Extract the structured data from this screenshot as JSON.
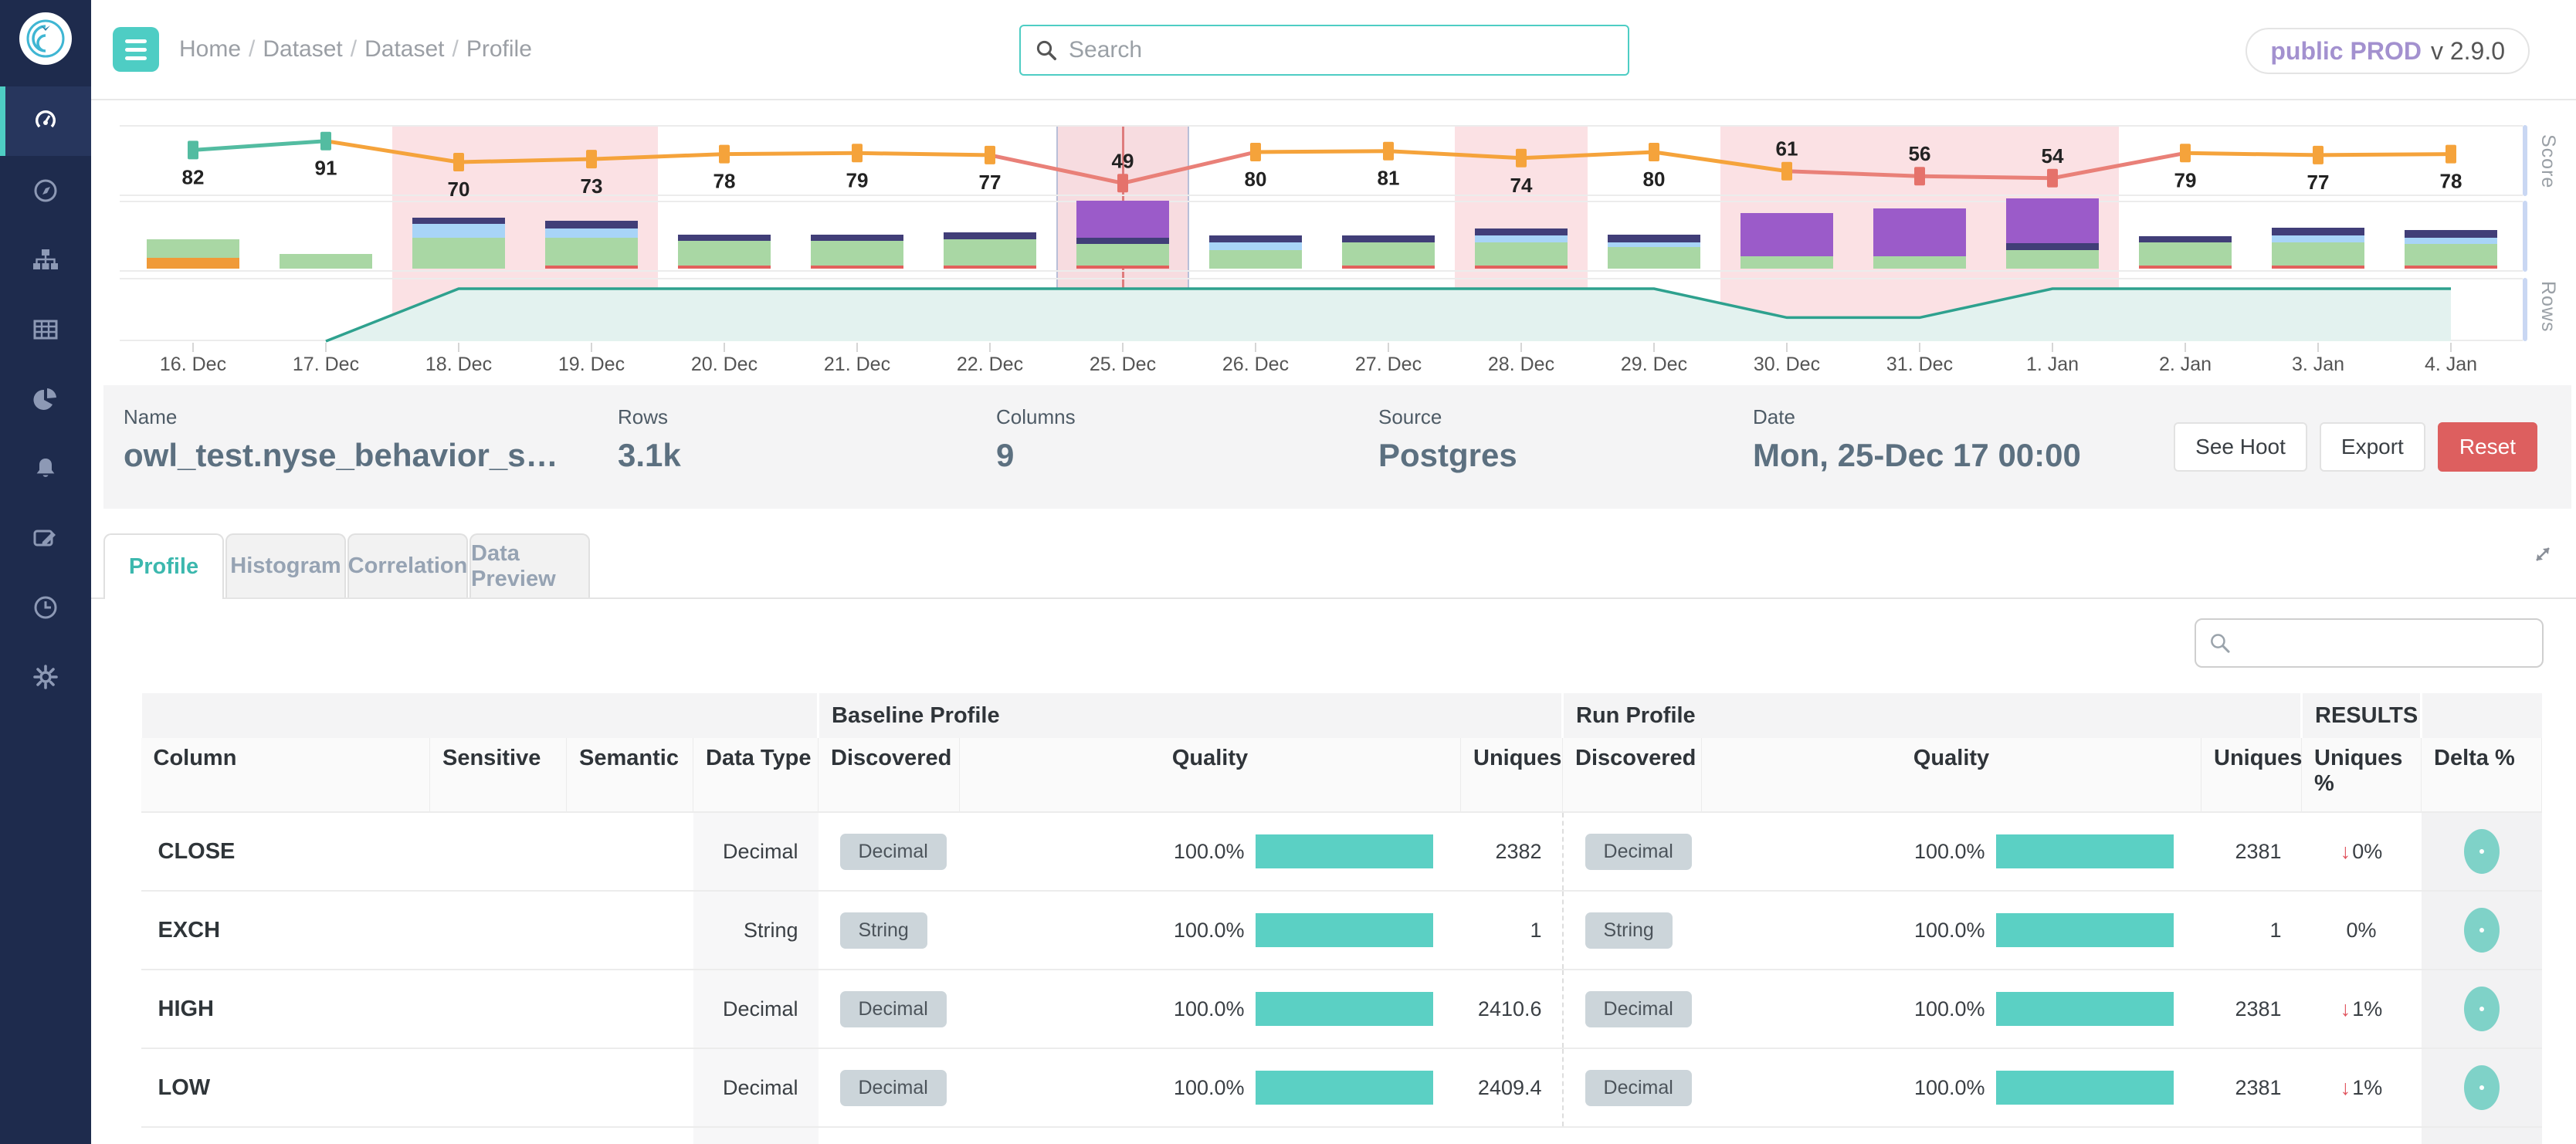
{
  "app": {
    "breadcrumb": [
      "Home",
      "Dataset",
      "Dataset",
      "Profile"
    ],
    "search_placeholder": "Search",
    "env_badge": {
      "bold": "public PROD",
      "version": "v 2.9.0"
    }
  },
  "sidebar": {
    "items": [
      {
        "name": "dashboard",
        "icon": "gauge-icon",
        "active": true
      },
      {
        "name": "explore",
        "icon": "compass-icon",
        "active": false
      },
      {
        "name": "catalog",
        "icon": "sitemap-icon",
        "active": false
      },
      {
        "name": "datasets",
        "icon": "table-icon",
        "active": false
      },
      {
        "name": "reports",
        "icon": "pie-chart-icon",
        "active": false
      },
      {
        "name": "alerts",
        "icon": "bell-icon",
        "active": false
      },
      {
        "name": "rules",
        "icon": "edit-icon",
        "active": false
      },
      {
        "name": "jobs",
        "icon": "clock-icon",
        "active": false
      },
      {
        "name": "admin",
        "icon": "gear-icon",
        "active": false
      }
    ]
  },
  "chart_data": [
    {
      "type": "line",
      "title": "Score",
      "x": [
        "16. Dec",
        "17. Dec",
        "18. Dec",
        "19. Dec",
        "20. Dec",
        "21. Dec",
        "22. Dec",
        "25. Dec",
        "26. Dec",
        "27. Dec",
        "28. Dec",
        "29. Dec",
        "30. Dec",
        "31. Dec",
        "1. Jan",
        "2. Jan",
        "3. Jan",
        "4. Jan"
      ],
      "values": [
        82,
        91,
        70,
        73,
        78,
        79,
        77,
        49,
        80,
        81,
        74,
        80,
        61,
        56,
        54,
        79,
        77,
        78
      ],
      "ylim": [
        40,
        100
      ],
      "marker_colors": [
        "teal",
        "teal",
        "orange",
        "orange",
        "orange",
        "orange",
        "orange",
        "red",
        "orange",
        "orange",
        "orange",
        "orange",
        "orange",
        "red",
        "red",
        "orange",
        "orange",
        "orange"
      ],
      "label_above_indices": [
        7,
        12,
        13,
        14
      ],
      "anomaly_bands": [
        [
          2,
          3
        ],
        [
          7,
          7
        ],
        [
          10,
          10
        ],
        [
          12,
          14
        ]
      ],
      "selected_index": 7,
      "palette": {
        "teal": "#53bca1",
        "orange": "#f5a33b",
        "red": "#e5726b",
        "red_line": "#e98078"
      }
    },
    {
      "type": "bar",
      "stacked": true,
      "categories": [
        "16. Dec",
        "17. Dec",
        "18. Dec",
        "19. Dec",
        "20. Dec",
        "21. Dec",
        "22. Dec",
        "25. Dec",
        "26. Dec",
        "27. Dec",
        "28. Dec",
        "29. Dec",
        "30. Dec",
        "31. Dec",
        "1. Jan",
        "2. Jan",
        "3. Jan",
        "4. Jan"
      ],
      "segment_colors": {
        "o": "#f09a38",
        "g": "#a9d7a4",
        "b": "#a8d4f7",
        "n": "#413e78",
        "p": "#9b5bc9",
        "r": "#e2605c"
      },
      "bars": [
        [
          [
            "o",
            14
          ],
          [
            "g",
            24
          ]
        ],
        [
          [
            "g",
            19
          ]
        ],
        [
          [
            "g",
            40
          ],
          [
            "b",
            18
          ],
          [
            "n",
            8
          ]
        ],
        [
          [
            "r",
            4
          ],
          [
            "g",
            36
          ],
          [
            "b",
            12
          ],
          [
            "n",
            10
          ]
        ],
        [
          [
            "r",
            4
          ],
          [
            "g",
            32
          ],
          [
            "n",
            8
          ]
        ],
        [
          [
            "r",
            4
          ],
          [
            "g",
            32
          ],
          [
            "n",
            8
          ]
        ],
        [
          [
            "r",
            4
          ],
          [
            "g",
            34
          ],
          [
            "n",
            9
          ]
        ],
        [
          [
            "r",
            4
          ],
          [
            "g",
            28
          ],
          [
            "n",
            8
          ],
          [
            "p",
            48
          ]
        ],
        [
          [
            "g",
            24
          ],
          [
            "b",
            10
          ],
          [
            "n",
            9
          ]
        ],
        [
          [
            "r",
            4
          ],
          [
            "g",
            30
          ],
          [
            "n",
            9
          ]
        ],
        [
          [
            "r",
            4
          ],
          [
            "g",
            30
          ],
          [
            "b",
            9
          ],
          [
            "n",
            9
          ]
        ],
        [
          [
            "g",
            28
          ],
          [
            "b",
            6
          ],
          [
            "n",
            10
          ]
        ],
        [
          [
            "g",
            16
          ],
          [
            "p",
            56
          ]
        ],
        [
          [
            "g",
            16
          ],
          [
            "p",
            62
          ]
        ],
        [
          [
            "g",
            24
          ],
          [
            "n",
            9
          ],
          [
            "p",
            58
          ]
        ],
        [
          [
            "r",
            4
          ],
          [
            "g",
            30
          ],
          [
            "n",
            8
          ]
        ],
        [
          [
            "r",
            4
          ],
          [
            "g",
            30
          ],
          [
            "b",
            9
          ],
          [
            "n",
            10
          ]
        ],
        [
          [
            "r",
            4
          ],
          [
            "g",
            28
          ],
          [
            "b",
            8
          ],
          [
            "n",
            10
          ]
        ]
      ]
    },
    {
      "type": "area",
      "title": "Rows",
      "x_index": [
        1,
        2,
        11,
        12,
        13,
        14,
        17
      ],
      "values_norm": [
        0,
        1,
        1,
        0.45,
        0.45,
        1,
        1
      ],
      "line_color": "#2ea18e",
      "fill_color": "#e3f2ef"
    }
  ],
  "info_bar": {
    "fields": [
      {
        "label": "Name",
        "value": "owl_test.nyse_behavior_s…"
      },
      {
        "label": "Rows",
        "value": "3.1k"
      },
      {
        "label": "Columns",
        "value": "9"
      },
      {
        "label": "Source",
        "value": "Postgres"
      },
      {
        "label": "Date",
        "value": "Mon, 25-Dec 17 00:00"
      }
    ],
    "buttons": [
      {
        "label": "See Hoot",
        "style": "light",
        "name": "see-hoot-button"
      },
      {
        "label": "Export",
        "style": "light",
        "name": "export-button"
      },
      {
        "label": "Reset",
        "style": "danger",
        "name": "reset-button"
      }
    ]
  },
  "tabs": {
    "items": [
      "Profile",
      "Histogram",
      "Correlation",
      "Data Preview"
    ],
    "active": "Profile"
  },
  "table": {
    "group_headers": [
      {
        "label": "",
        "span": 4
      },
      {
        "label": "Baseline Profile",
        "span": 3
      },
      {
        "label": "Run Profile",
        "span": 3
      },
      {
        "label": "RESULTS",
        "span": 1
      },
      {
        "label": "",
        "span": 1
      }
    ],
    "columns": [
      "Column",
      "Sensitive",
      "Semantic",
      "Data Type",
      "Discovered",
      "Quality",
      "Uniques",
      "Discovered",
      "Quality",
      "Uniques",
      "Uniques %",
      "Delta %"
    ],
    "rows": [
      {
        "column": "CLOSE",
        "sensitive": "",
        "semantic": "",
        "data_type": "Decimal",
        "baseline": {
          "discovered": "Decimal",
          "quality": "100.0%",
          "uniques": "2382"
        },
        "run": {
          "discovered": "Decimal",
          "quality": "100.0%",
          "uniques": "2381"
        },
        "uniques_pct": {
          "trend": "down",
          "value": "0%"
        }
      },
      {
        "column": "EXCH",
        "sensitive": "",
        "semantic": "",
        "data_type": "String",
        "baseline": {
          "discovered": "String",
          "quality": "100.0%",
          "uniques": "1"
        },
        "run": {
          "discovered": "String",
          "quality": "100.0%",
          "uniques": "1"
        },
        "uniques_pct": {
          "trend": "none",
          "value": "0%"
        }
      },
      {
        "column": "HIGH",
        "sensitive": "",
        "semantic": "",
        "data_type": "Decimal",
        "baseline": {
          "discovered": "Decimal",
          "quality": "100.0%",
          "uniques": "2410.6"
        },
        "run": {
          "discovered": "Decimal",
          "quality": "100.0%",
          "uniques": "2381"
        },
        "uniques_pct": {
          "trend": "down",
          "value": "1%"
        }
      },
      {
        "column": "LOW",
        "sensitive": "",
        "semantic": "",
        "data_type": "Decimal",
        "baseline": {
          "discovered": "Decimal",
          "quality": "100.0%",
          "uniques": "2409.4"
        },
        "run": {
          "discovered": "Decimal",
          "quality": "100.0%",
          "uniques": "2381"
        },
        "uniques_pct": {
          "trend": "down",
          "value": "1%"
        }
      }
    ]
  },
  "colors": {
    "accent_teal": "#4ecdc4",
    "quality_bar": "#5bd0c4",
    "pink_band": "#f9d6da",
    "danger_red": "#dd5f5f",
    "sidebar_navy": "#1e2b4d"
  }
}
